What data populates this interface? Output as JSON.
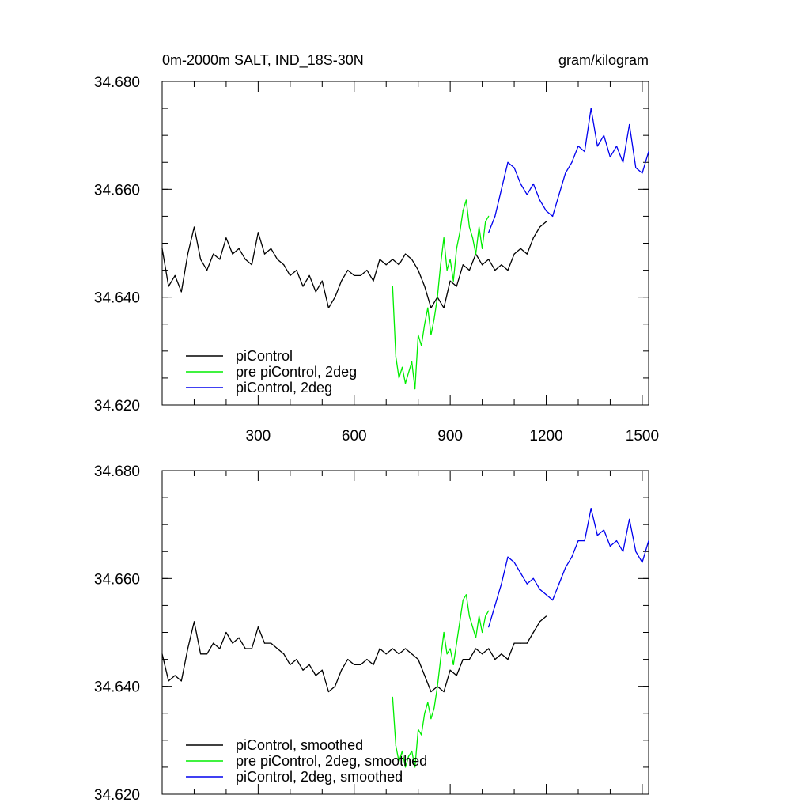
{
  "chart_data": [
    {
      "type": "line",
      "title_left": "0m-2000m SALT, IND_18S-30N",
      "title_right": "gram/kilogram",
      "xlim": [
        0,
        1520
      ],
      "ylim": [
        34.62,
        34.68
      ],
      "xticks": [
        300,
        600,
        900,
        1200,
        1500
      ],
      "yticks": [
        34.62,
        34.64,
        34.66,
        34.68
      ],
      "ytick_labels": [
        "34.620",
        "34.640",
        "34.660",
        "34.680"
      ],
      "show_x_tick_labels": true,
      "series": [
        {
          "name": "piControl",
          "color": "#000000",
          "x": [
            0,
            20,
            40,
            60,
            80,
            100,
            120,
            140,
            160,
            180,
            200,
            220,
            240,
            260,
            280,
            300,
            320,
            340,
            360,
            380,
            400,
            420,
            440,
            460,
            480,
            500,
            520,
            540,
            560,
            580,
            600,
            620,
            640,
            660,
            680,
            700,
            720,
            740,
            760,
            780,
            800,
            820,
            840,
            860,
            880,
            900,
            920,
            940,
            960,
            980,
            1000,
            1020,
            1040,
            1060,
            1080,
            1100,
            1120,
            1140,
            1160,
            1180,
            1200
          ],
          "values": [
            34.649,
            34.642,
            34.644,
            34.641,
            34.648,
            34.653,
            34.647,
            34.645,
            34.648,
            34.647,
            34.651,
            34.648,
            34.649,
            34.647,
            34.646,
            34.652,
            34.648,
            34.649,
            34.647,
            34.646,
            34.644,
            34.645,
            34.642,
            34.644,
            34.641,
            34.643,
            34.638,
            34.64,
            34.643,
            34.645,
            34.644,
            34.644,
            34.645,
            34.643,
            34.647,
            34.646,
            34.647,
            34.646,
            34.648,
            34.647,
            34.645,
            34.642,
            34.638,
            34.64,
            34.638,
            34.643,
            34.642,
            34.646,
            34.645,
            34.648,
            34.646,
            34.647,
            34.645,
            34.646,
            34.645,
            34.648,
            34.649,
            34.648,
            34.651,
            34.653,
            34.654
          ]
        },
        {
          "name": "pre piControl, 2deg",
          "color": "#00ee00",
          "x": [
            720,
            730,
            740,
            750,
            760,
            770,
            780,
            790,
            800,
            810,
            820,
            830,
            840,
            850,
            860,
            870,
            880,
            890,
            900,
            910,
            920,
            930,
            940,
            950,
            960,
            970,
            980,
            990,
            1000,
            1010,
            1020
          ],
          "values": [
            34.642,
            34.629,
            34.625,
            34.627,
            34.624,
            34.626,
            34.628,
            34.623,
            34.633,
            34.631,
            34.635,
            34.638,
            34.633,
            34.636,
            34.64,
            34.646,
            34.651,
            34.645,
            34.647,
            34.643,
            34.649,
            34.652,
            34.656,
            34.658,
            34.653,
            34.651,
            34.648,
            34.653,
            34.649,
            34.654,
            34.655
          ]
        },
        {
          "name": "piControl, 2deg",
          "color": "#0000ee",
          "x": [
            1020,
            1040,
            1060,
            1080,
            1100,
            1120,
            1140,
            1160,
            1180,
            1200,
            1220,
            1240,
            1260,
            1280,
            1300,
            1320,
            1340,
            1360,
            1380,
            1400,
            1420,
            1440,
            1460,
            1480,
            1500,
            1520
          ],
          "values": [
            34.652,
            34.655,
            34.66,
            34.665,
            34.664,
            34.661,
            34.659,
            34.661,
            34.658,
            34.656,
            34.655,
            34.659,
            34.663,
            34.665,
            34.668,
            34.667,
            34.675,
            34.668,
            34.67,
            34.666,
            34.668,
            34.665,
            34.672,
            34.664,
            34.663,
            34.667
          ]
        }
      ],
      "legend": [
        "piControl",
        "pre piControl, 2deg",
        "piControl, 2deg"
      ]
    },
    {
      "type": "line",
      "xlim": [
        0,
        1520
      ],
      "ylim": [
        34.62,
        34.68
      ],
      "xticks": [
        300,
        600,
        900,
        1200,
        1500
      ],
      "yticks": [
        34.62,
        34.64,
        34.66,
        34.68
      ],
      "ytick_labels": [
        "34.620",
        "34.640",
        "34.660",
        "34.680"
      ],
      "show_x_tick_labels": false,
      "series": [
        {
          "name": "piControl, smoothed",
          "color": "#000000",
          "x": [
            0,
            20,
            40,
            60,
            80,
            100,
            120,
            140,
            160,
            180,
            200,
            220,
            240,
            260,
            280,
            300,
            320,
            340,
            360,
            380,
            400,
            420,
            440,
            460,
            480,
            500,
            520,
            540,
            560,
            580,
            600,
            620,
            640,
            660,
            680,
            700,
            720,
            740,
            760,
            780,
            800,
            820,
            840,
            860,
            880,
            900,
            920,
            940,
            960,
            980,
            1000,
            1020,
            1040,
            1060,
            1080,
            1100,
            1120,
            1140,
            1160,
            1180,
            1200
          ],
          "values": [
            34.646,
            34.641,
            34.642,
            34.641,
            34.647,
            34.652,
            34.646,
            34.646,
            34.648,
            34.647,
            34.65,
            34.648,
            34.649,
            34.647,
            34.647,
            34.651,
            34.648,
            34.648,
            34.647,
            34.646,
            34.644,
            34.645,
            34.643,
            34.644,
            34.642,
            34.643,
            34.639,
            34.64,
            34.643,
            34.645,
            34.644,
            34.644,
            34.645,
            34.644,
            34.647,
            34.646,
            34.647,
            34.646,
            34.647,
            34.646,
            34.645,
            34.642,
            34.639,
            34.64,
            34.639,
            34.643,
            34.642,
            34.645,
            34.645,
            34.647,
            34.646,
            34.647,
            34.645,
            34.646,
            34.645,
            34.648,
            34.648,
            34.648,
            34.65,
            34.652,
            34.653
          ]
        },
        {
          "name": "pre piControl, 2deg, smoothed",
          "color": "#00ee00",
          "x": [
            720,
            730,
            740,
            750,
            760,
            770,
            780,
            790,
            800,
            810,
            820,
            830,
            840,
            850,
            860,
            870,
            880,
            890,
            900,
            910,
            920,
            930,
            940,
            950,
            960,
            970,
            980,
            990,
            1000,
            1010,
            1020
          ],
          "values": [
            34.638,
            34.629,
            34.626,
            34.628,
            34.625,
            34.627,
            34.628,
            34.625,
            34.632,
            34.631,
            34.635,
            34.637,
            34.634,
            34.636,
            34.64,
            34.645,
            34.65,
            34.646,
            34.647,
            34.644,
            34.648,
            34.652,
            34.656,
            34.657,
            34.653,
            34.651,
            34.649,
            34.653,
            34.65,
            34.653,
            34.654
          ]
        },
        {
          "name": "piControl, 2deg, smoothed",
          "color": "#0000ee",
          "x": [
            1020,
            1040,
            1060,
            1080,
            1100,
            1120,
            1140,
            1160,
            1180,
            1200,
            1220,
            1240,
            1260,
            1280,
            1300,
            1320,
            1340,
            1360,
            1380,
            1400,
            1420,
            1440,
            1460,
            1480,
            1500,
            1520
          ],
          "values": [
            34.651,
            34.655,
            34.659,
            34.664,
            34.663,
            34.661,
            34.659,
            34.66,
            34.658,
            34.657,
            34.656,
            34.659,
            34.662,
            34.664,
            34.667,
            34.667,
            34.673,
            34.668,
            34.669,
            34.666,
            34.667,
            34.665,
            34.671,
            34.665,
            34.663,
            34.667
          ]
        }
      ],
      "legend": [
        "piControl, smoothed",
        "pre piControl, 2deg, smoothed",
        "piControl, 2deg, smoothed"
      ]
    }
  ]
}
